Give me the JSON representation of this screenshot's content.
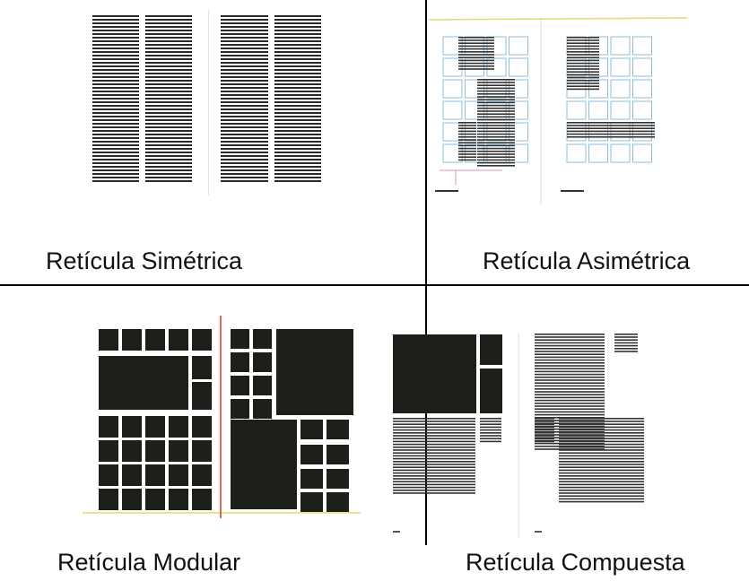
{
  "captions": {
    "symmetric": "Retícula Simétrica",
    "asymmetric": "Retícula Asimétrica",
    "modular": "Retícula Modular",
    "composite": "Retícula Compuesta"
  },
  "colors": {
    "ink": "#1d1f1a",
    "grid_blue": "#8fbcd8",
    "guide_red": "#e0302a",
    "guide_yellow": "#e6d86a",
    "guide_pink": "#e28fb4"
  }
}
